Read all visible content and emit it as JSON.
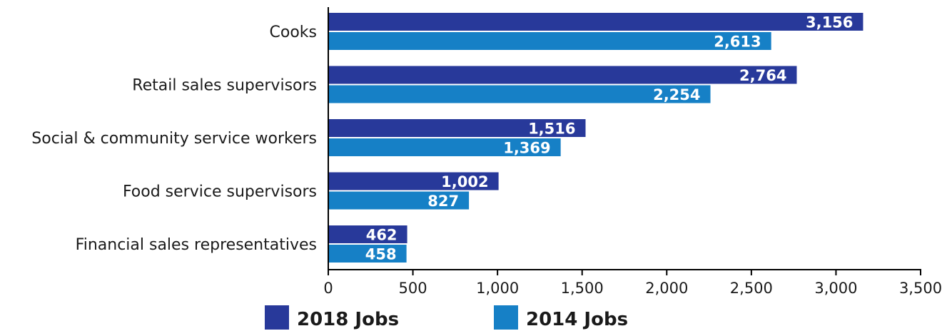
{
  "chart_data": {
    "type": "bar",
    "orientation": "horizontal",
    "categories": [
      "Cooks",
      "Retail sales supervisors",
      "Social & community service workers",
      "Food service supervisors",
      "Financial sales representatives"
    ],
    "series": [
      {
        "name": "2018 Jobs",
        "color": "#28399a",
        "values": [
          3156,
          2764,
          1516,
          1002,
          462
        ],
        "labels": [
          "3,156",
          "2,764",
          "1,516",
          "1,002",
          "462"
        ]
      },
      {
        "name": "2014 Jobs",
        "color": "#1680c6",
        "values": [
          2613,
          2254,
          1369,
          827,
          458
        ],
        "labels": [
          "2,613",
          "2,254",
          "1,369",
          "827",
          "458"
        ]
      }
    ],
    "xlim": [
      0,
      3500
    ],
    "xticks": [
      0,
      500,
      1000,
      1500,
      2000,
      2500,
      3000,
      3500
    ],
    "xtick_labels": [
      "0",
      "500",
      "1,000",
      "1,500",
      "2,000",
      "2,500",
      "3,000",
      "3,500"
    ],
    "title": "",
    "xlabel": "",
    "ylabel": "",
    "grid": false,
    "legend_position": "bottom"
  }
}
